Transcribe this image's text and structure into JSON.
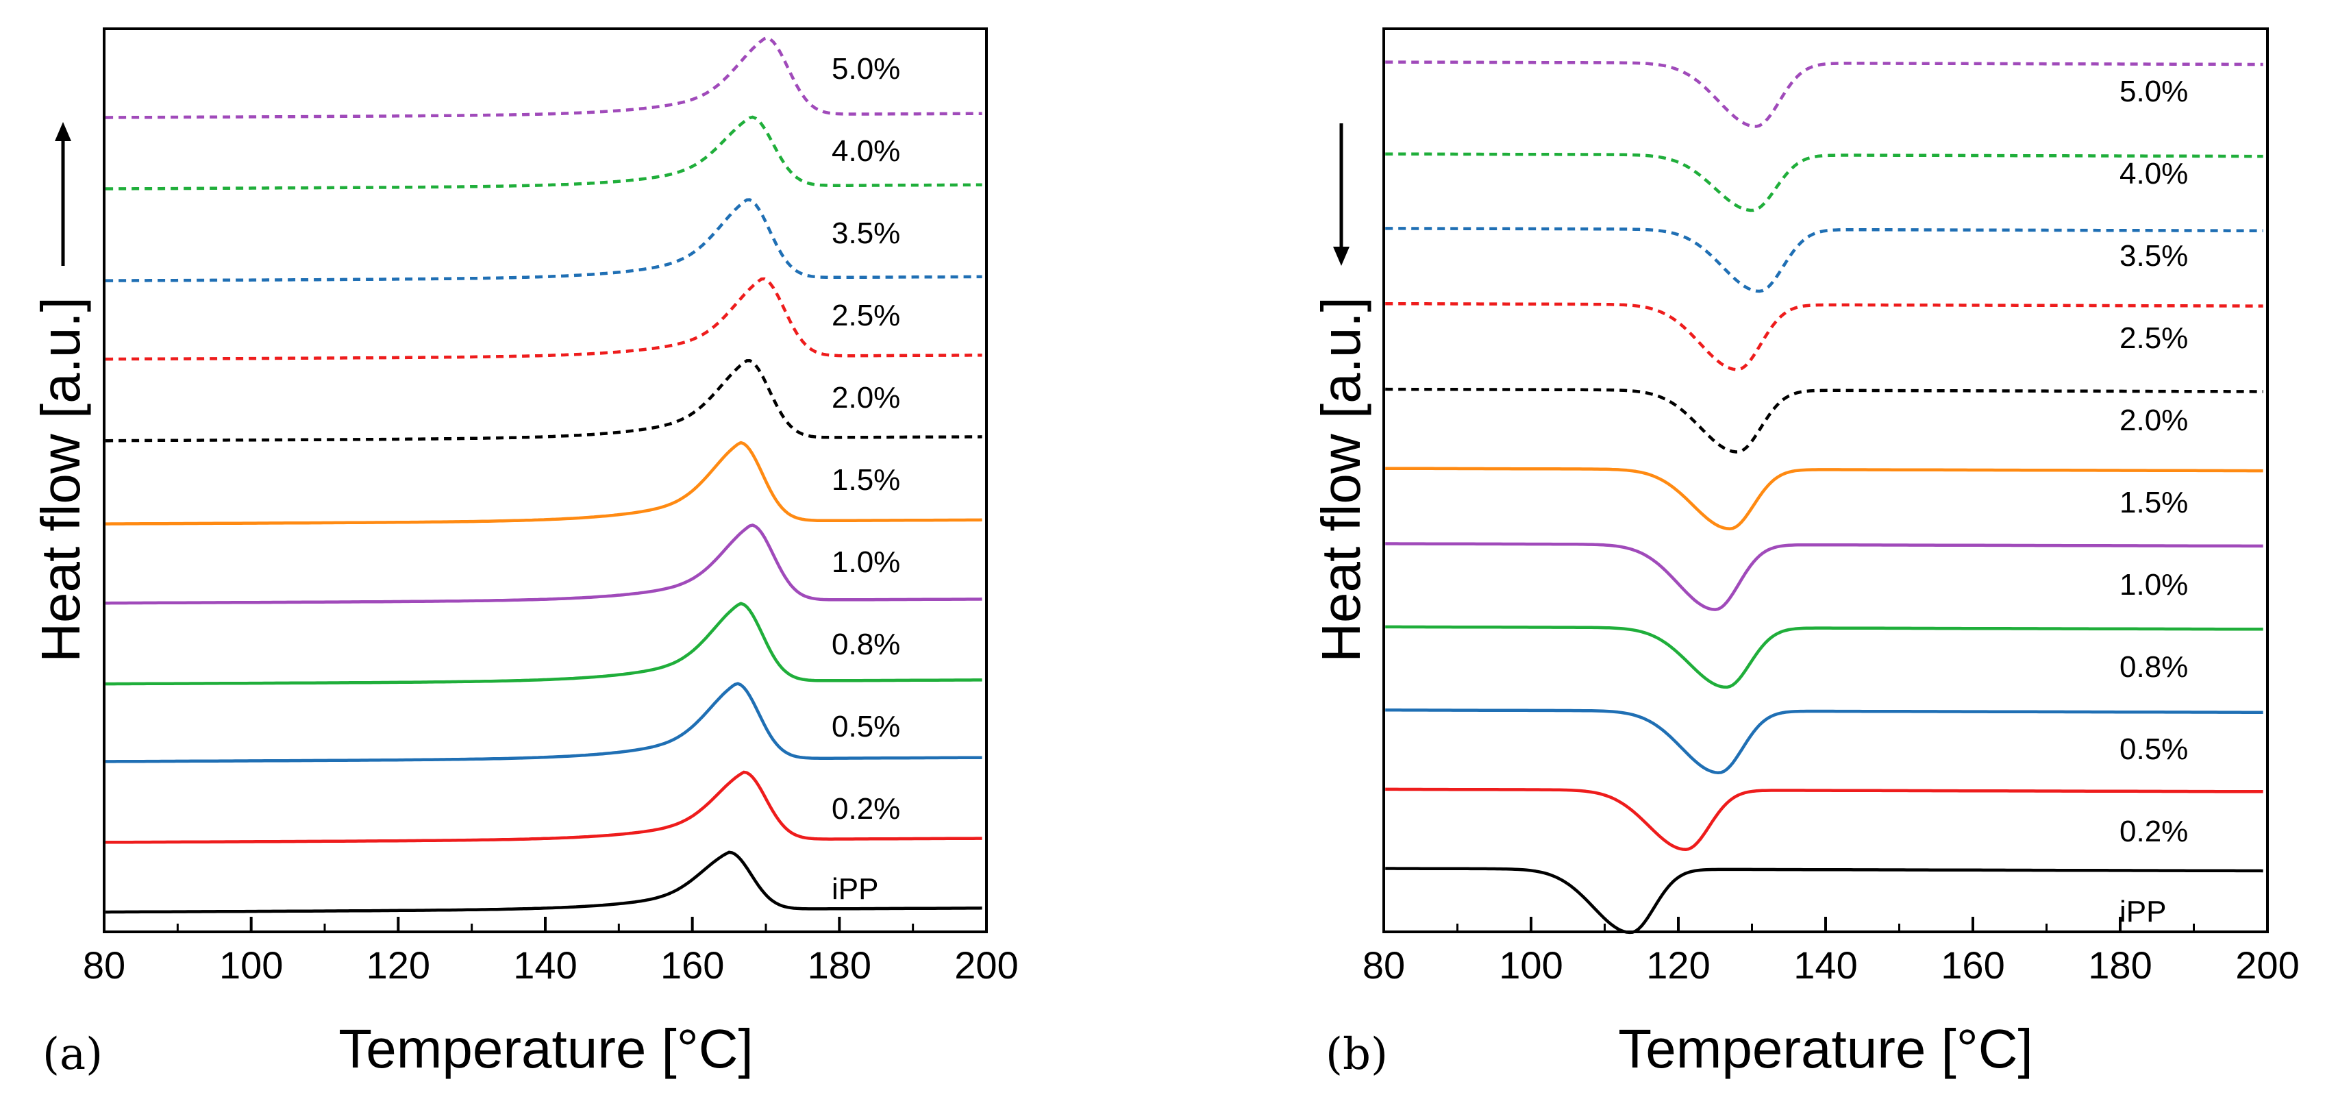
{
  "colors": {
    "ipp": "#000000",
    "p02": "#ee1c1c",
    "p05": "#1f6fb4",
    "p08": "#1fae3a",
    "p10": "#a04aba",
    "p15": "#ff8a12",
    "p20": "#000000",
    "p25": "#ee1c1c",
    "p35": "#1f6fb4",
    "p40": "#1fae3a",
    "p50": "#a04aba"
  },
  "chart_data": [
    {
      "type": "line",
      "panel_label": "(a)",
      "title": "",
      "xlabel": "Temperature [°C]",
      "ylabel": "Heat flow [a.u.]",
      "arrow_direction": "up",
      "xlim": [
        80,
        200
      ],
      "ylim": [
        0,
        11.4
      ],
      "xticks": [
        80,
        100,
        120,
        140,
        160,
        180,
        200
      ],
      "grid": false,
      "legend": "inline labels at right",
      "series": [
        {
          "name": "iPP",
          "label": "iPP",
          "style": "solid",
          "color": "#000000",
          "offset": 0.25,
          "peak_height": 0.72,
          "peak_temp": 165
        },
        {
          "name": "0.2%",
          "label": "0.2%",
          "style": "solid",
          "color": "#ee1c1c",
          "offset": 1.13,
          "peak_height": 0.85,
          "peak_temp": 167
        },
        {
          "name": "0.5%",
          "label": "0.5%",
          "style": "solid",
          "color": "#1f6fb4",
          "offset": 2.15,
          "peak_height": 0.95,
          "peak_temp": 166
        },
        {
          "name": "0.8%",
          "label": "0.8%",
          "style": "solid",
          "color": "#1fae3a",
          "offset": 3.13,
          "peak_height": 0.98,
          "peak_temp": 166.5
        },
        {
          "name": "1.0%",
          "label": "1.0%",
          "style": "solid",
          "color": "#a04aba",
          "offset": 4.15,
          "peak_height": 0.95,
          "peak_temp": 168
        },
        {
          "name": "1.5%",
          "label": "1.5%",
          "style": "solid",
          "color": "#ff8a12",
          "offset": 5.15,
          "peak_height": 0.99,
          "peak_temp": 166.5
        },
        {
          "name": "2.0%",
          "label": "2.0%",
          "style": "dashed",
          "color": "#000000",
          "offset": 6.2,
          "peak_height": 0.98,
          "peak_temp": 167.5
        },
        {
          "name": "2.5%",
          "label": "2.5%",
          "style": "dashed",
          "color": "#ee1c1c",
          "offset": 7.23,
          "peak_height": 0.98,
          "peak_temp": 169.5
        },
        {
          "name": "3.5%",
          "label": "3.5%",
          "style": "dashed",
          "color": "#1f6fb4",
          "offset": 8.22,
          "peak_height": 0.99,
          "peak_temp": 167.5
        },
        {
          "name": "4.0%",
          "label": "4.0%",
          "style": "dashed",
          "color": "#1fae3a",
          "offset": 9.38,
          "peak_height": 0.87,
          "peak_temp": 168
        },
        {
          "name": "5.0%",
          "label": "5.0%",
          "style": "dashed",
          "color": "#a04aba",
          "offset": 10.28,
          "peak_height": 0.97,
          "peak_temp": 170
        }
      ]
    },
    {
      "type": "line",
      "panel_label": "(b)",
      "title": "",
      "xlabel": "Temperature [°C]",
      "ylabel": "Heat flow [a.u.]",
      "arrow_direction": "down",
      "xlim": [
        80,
        200
      ],
      "ylim": [
        0,
        11.4
      ],
      "xticks": [
        80,
        100,
        120,
        140,
        160,
        180,
        200
      ],
      "grid": false,
      "legend": "inline labels at right",
      "series": [
        {
          "name": "iPP",
          "label": "iPP",
          "style": "solid",
          "color": "#000000",
          "offset": 0.8,
          "peak_depth": 0.8,
          "peak_temp": 113.5
        },
        {
          "name": "0.2%",
          "label": "0.2%",
          "style": "solid",
          "color": "#ee1c1c",
          "offset": 1.8,
          "peak_depth": 0.75,
          "peak_temp": 121
        },
        {
          "name": "0.5%",
          "label": "0.5%",
          "style": "solid",
          "color": "#1f6fb4",
          "offset": 2.8,
          "peak_depth": 0.78,
          "peak_temp": 125.5
        },
        {
          "name": "0.8%",
          "label": "0.8%",
          "style": "solid",
          "color": "#1fae3a",
          "offset": 3.85,
          "peak_depth": 0.75,
          "peak_temp": 126.5
        },
        {
          "name": "1.0%",
          "label": "1.0%",
          "style": "solid",
          "color": "#a04aba",
          "offset": 4.9,
          "peak_depth": 0.82,
          "peak_temp": 125
        },
        {
          "name": "1.5%",
          "label": "1.5%",
          "style": "solid",
          "color": "#ff8a12",
          "offset": 5.85,
          "peak_depth": 0.75,
          "peak_temp": 127
        },
        {
          "name": "2.0%",
          "label": "2.0%",
          "style": "dashed",
          "color": "#000000",
          "offset": 6.85,
          "peak_depth": 0.78,
          "peak_temp": 128
        },
        {
          "name": "2.5%",
          "label": "2.5%",
          "style": "dashed",
          "color": "#ee1c1c",
          "offset": 7.93,
          "peak_depth": 0.82,
          "peak_temp": 128
        },
        {
          "name": "3.5%",
          "label": "3.5%",
          "style": "dashed",
          "color": "#1f6fb4",
          "offset": 8.88,
          "peak_depth": 0.78,
          "peak_temp": 131
        },
        {
          "name": "4.0%",
          "label": "4.0%",
          "style": "dashed",
          "color": "#1fae3a",
          "offset": 9.82,
          "peak_depth": 0.7,
          "peak_temp": 130
        },
        {
          "name": "5.0%",
          "label": "5.0%",
          "style": "dashed",
          "color": "#a04aba",
          "offset": 10.98,
          "peak_depth": 0.8,
          "peak_temp": 130.5
        }
      ]
    }
  ]
}
